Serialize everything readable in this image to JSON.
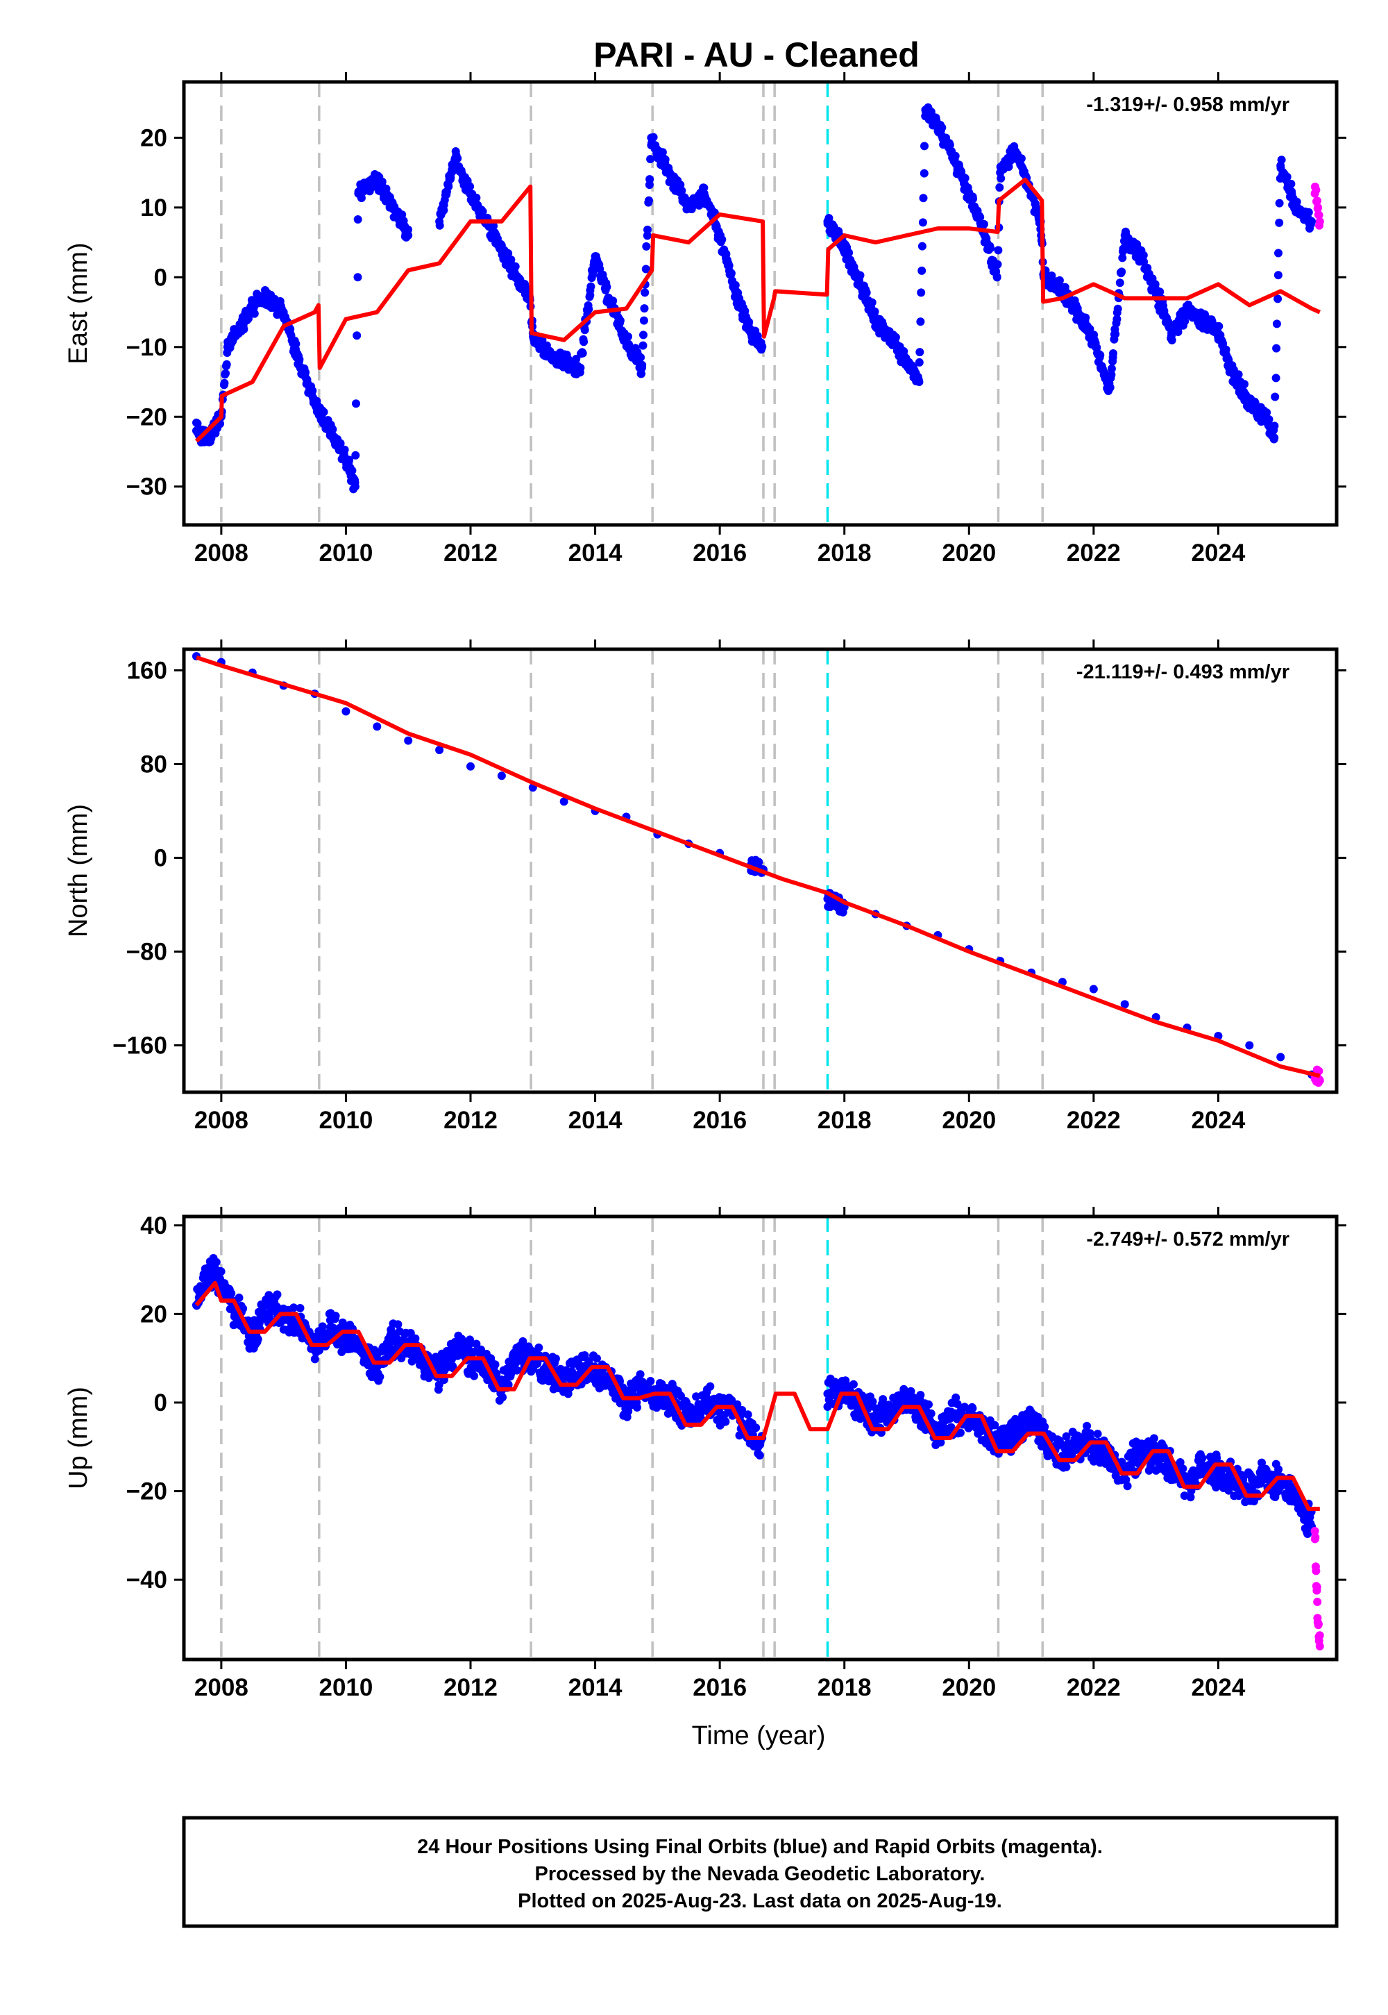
{
  "title": "PARI  - AU - Cleaned",
  "xlabel": "Time (year)",
  "caption": [
    "24 Hour Positions Using Final Orbits (blue) and Rapid Orbits (magenta).",
    "Processed by the Nevada Geodetic Laboratory.",
    "Plotted on 2025-Aug-23. Last data on 2025-Aug-19."
  ],
  "colors": {
    "final_orbits": "#0000ff",
    "rapid_orbits": "#ff00ff",
    "model": "#ff0000",
    "equipment_change_line": "#c0c0c0",
    "earthquake_line": "#00e5ee"
  },
  "chart_data": [
    {
      "type": "scatter",
      "ylabel": "East (mm)",
      "rate_text": "-1.319+/- 0.958 mm/yr",
      "xlim": [
        2007.4,
        2025.9
      ],
      "ylim": [
        -35.5,
        28
      ],
      "xticks": [
        "2008",
        "2010",
        "2012",
        "2014",
        "2016",
        "2018",
        "2020",
        "2022",
        "2024"
      ],
      "yticks": [
        -30,
        -20,
        -10,
        0,
        10,
        20
      ],
      "equipment_change_epochs": [
        2008.0,
        2009.57,
        2012.97,
        2014.92,
        2016.7,
        2016.88,
        2020.47,
        2021.18
      ],
      "earthquake_epochs": [
        2017.73
      ],
      "series": [
        {
          "role": "final_orbits",
          "x": [
            2007.6,
            2007.8,
            2008.0,
            2008.1,
            2008.25,
            2008.5,
            2008.75,
            2009.0,
            2009.25,
            2009.5,
            2009.75,
            2010.0,
            2010.15,
            2010.2,
            2010.5,
            2010.75,
            2011.0,
            2011.5,
            2011.75,
            2012.0,
            2012.25,
            2012.5,
            2012.75,
            2012.95,
            2013.0,
            2013.25,
            2013.5,
            2013.75,
            2014.0,
            2014.25,
            2014.5,
            2014.75,
            2014.9,
            2015.0,
            2015.25,
            2015.5,
            2015.75,
            2016.0,
            2016.25,
            2016.5,
            2016.68,
            2017.73,
            2018.0,
            2018.25,
            2018.5,
            2018.75,
            2019.0,
            2019.2,
            2019.3,
            2019.5,
            2019.75,
            2020.0,
            2020.25,
            2020.45,
            2020.5,
            2020.75,
            2021.0,
            2021.15,
            2021.2,
            2021.5,
            2021.75,
            2022.0,
            2022.25,
            2022.5,
            2022.75,
            2023.0,
            2023.25,
            2023.5,
            2023.75,
            2024.0,
            2024.25,
            2024.5,
            2024.75,
            2024.9,
            2025.0,
            2025.25,
            2025.5
          ],
          "y": [
            -22,
            -23,
            -20,
            -10,
            -8,
            -4,
            -3,
            -5,
            -12,
            -18,
            -22,
            -26,
            -30,
            12,
            14,
            10,
            6,
            8,
            17,
            12,
            8,
            4,
            0,
            -3,
            -8,
            -11,
            -12,
            -13,
            3,
            -4,
            -9,
            -13,
            20,
            18,
            14,
            10,
            12,
            6,
            -2,
            -8,
            -10,
            8,
            4,
            -1,
            -6,
            -9,
            -12,
            -15,
            24,
            22,
            17,
            12,
            6,
            0,
            15,
            18,
            12,
            8,
            0,
            -2,
            -5,
            -9,
            -16,
            6,
            3,
            -2,
            -8,
            -5,
            -6,
            -8,
            -14,
            -18,
            -20,
            -23,
            16,
            10,
            8
          ]
        },
        {
          "role": "rapid_orbits",
          "x": [
            2025.55,
            2025.6,
            2025.63
          ],
          "y": [
            12,
            10,
            8
          ]
        },
        {
          "role": "model",
          "x": [
            2007.6,
            2008.0,
            2008.01,
            2008.5,
            2009.0,
            2009.5,
            2009.56,
            2009.58,
            2010.0,
            2010.5,
            2011.0,
            2011.5,
            2012.0,
            2012.5,
            2012.96,
            2012.98,
            2013.5,
            2014.0,
            2014.5,
            2014.91,
            2014.93,
            2015.5,
            2016.0,
            2016.69,
            2016.71,
            2016.87,
            2016.89,
            2017.72,
            2017.74,
            2018.0,
            2018.5,
            2019.0,
            2019.5,
            2020.0,
            2020.46,
            2020.48,
            2020.9,
            2021.17,
            2021.19,
            2021.5,
            2022.0,
            2022.5,
            2023.0,
            2023.5,
            2024.0,
            2024.5,
            2025.0,
            2025.5,
            2025.63
          ],
          "y": [
            -23.5,
            -20,
            -17,
            -15,
            -7,
            -5,
            -4,
            -13,
            -6,
            -5,
            1,
            2,
            8,
            8,
            13,
            -8,
            -9,
            -5,
            -4.5,
            1,
            6,
            5,
            9,
            8,
            -8.5,
            -3,
            -2,
            -2.5,
            4,
            6,
            5,
            6,
            7,
            7,
            6.5,
            11,
            14,
            11,
            -3.5,
            -3,
            -1,
            -3,
            -3,
            -3,
            -1,
            -4,
            -2,
            -4.5,
            -5
          ]
        }
      ]
    },
    {
      "type": "scatter",
      "ylabel": "North (mm)",
      "rate_text": "-21.119+/- 0.493 mm/yr",
      "xlim": [
        2007.4,
        2025.9
      ],
      "ylim": [
        -200,
        178
      ],
      "xticks": [
        "2008",
        "2010",
        "2012",
        "2014",
        "2016",
        "2018",
        "2020",
        "2022",
        "2024"
      ],
      "yticks": [
        -160,
        -80,
        0,
        80,
        160
      ],
      "equipment_change_epochs": [
        2008.0,
        2009.57,
        2012.97,
        2014.92,
        2016.7,
        2016.88,
        2020.47,
        2021.18
      ],
      "earthquake_epochs": [
        2017.73
      ],
      "series": [
        {
          "role": "final_orbits",
          "x": [
            2007.6,
            2008.0,
            2008.5,
            2009.0,
            2009.5,
            2010.0,
            2010.5,
            2011.0,
            2011.5,
            2012.0,
            2012.5,
            2013.0,
            2013.5,
            2014.0,
            2014.5,
            2015.0,
            2015.5,
            2016.0,
            2016.5,
            2016.7,
            2017.73,
            2018.0,
            2018.5,
            2019.0,
            2019.5,
            2020.0,
            2020.5,
            2021.0,
            2021.5,
            2022.0,
            2022.5,
            2023.0,
            2023.5,
            2024.0,
            2024.5,
            2025.0,
            2025.5
          ],
          "y": [
            172,
            167,
            158,
            147,
            140,
            125,
            112,
            100,
            92,
            78,
            70,
            60,
            48,
            40,
            35,
            20,
            12,
            4,
            -6,
            -10,
            -35,
            -42,
            -48,
            -58,
            -66,
            -78,
            -88,
            -98,
            -106,
            -112,
            -125,
            -136,
            -145,
            -152,
            -160,
            -170,
            -185
          ]
        },
        {
          "role": "rapid_orbits",
          "x": [
            2025.55,
            2025.6,
            2025.63
          ],
          "y": [
            -186,
            -188,
            -190
          ]
        },
        {
          "role": "model",
          "x": [
            2007.6,
            2008.0,
            2009.0,
            2010.0,
            2011.0,
            2012.0,
            2013.0,
            2014.0,
            2015.0,
            2016.0,
            2017.0,
            2017.73,
            2018.0,
            2019.0,
            2020.0,
            2021.0,
            2022.0,
            2023.0,
            2024.0,
            2025.0,
            2025.63
          ],
          "y": [
            171,
            164,
            148,
            132,
            106,
            88,
            64,
            42,
            22,
            2,
            -18,
            -30,
            -38,
            -58,
            -80,
            -100,
            -120,
            -140,
            -156,
            -178,
            -186
          ]
        }
      ]
    },
    {
      "type": "scatter",
      "ylabel": "Up (mm)",
      "rate_text": "-2.749+/- 0.572 mm/yr",
      "xlim": [
        2007.4,
        2025.9
      ],
      "ylim": [
        -58,
        42
      ],
      "xticks": [
        "2008",
        "2010",
        "2012",
        "2014",
        "2016",
        "2018",
        "2020",
        "2022",
        "2024"
      ],
      "yticks": [
        -40,
        -20,
        0,
        20,
        40
      ],
      "equipment_change_epochs": [
        2008.0,
        2009.57,
        2012.97,
        2014.92,
        2016.7,
        2016.88,
        2020.47,
        2021.18
      ],
      "earthquake_epochs": [
        2017.73
      ],
      "series": [
        {
          "role": "final_orbits",
          "x": [
            2007.6,
            2007.8,
            2008.0,
            2008.25,
            2008.5,
            2008.75,
            2009.0,
            2009.25,
            2009.5,
            2009.75,
            2010.0,
            2010.25,
            2010.5,
            2010.75,
            2011.0,
            2011.25,
            2011.5,
            2011.75,
            2012.0,
            2012.25,
            2012.5,
            2012.75,
            2013.0,
            2013.25,
            2013.5,
            2013.75,
            2014.0,
            2014.25,
            2014.5,
            2014.75,
            2015.0,
            2015.25,
            2015.5,
            2015.75,
            2016.0,
            2016.25,
            2016.5,
            2016.68,
            2017.73,
            2018.0,
            2018.25,
            2018.5,
            2018.75,
            2019.0,
            2019.25,
            2019.5,
            2019.75,
            2020.0,
            2020.25,
            2020.5,
            2020.75,
            2021.0,
            2021.25,
            2021.5,
            2021.75,
            2022.0,
            2022.25,
            2022.5,
            2022.75,
            2023.0,
            2023.25,
            2023.5,
            2023.75,
            2024.0,
            2024.25,
            2024.5,
            2024.75,
            2025.0,
            2025.25,
            2025.5
          ],
          "y": [
            22,
            30,
            27,
            20,
            15,
            22,
            20,
            18,
            12,
            17,
            15,
            12,
            8,
            14,
            13,
            10,
            6,
            12,
            10,
            8,
            3,
            10,
            10,
            8,
            4,
            8,
            7,
            5,
            0,
            4,
            2,
            1,
            -4,
            0,
            -1,
            -2,
            -7,
            -8,
            2,
            3,
            0,
            -4,
            -1,
            0,
            -2,
            -7,
            -3,
            -4,
            -6,
            -10,
            -6,
            -5,
            -8,
            -12,
            -9,
            -10,
            -13,
            -16,
            -11,
            -12,
            -14,
            -18,
            -15,
            -15,
            -17,
            -20,
            -16,
            -18,
            -22,
            -28
          ]
        },
        {
          "role": "rapid_orbits",
          "x": [
            2025.55,
            2025.57,
            2025.59,
            2025.61,
            2025.63
          ],
          "y": [
            -29,
            -38,
            -45,
            -50,
            -55
          ]
        },
        {
          "role": "model",
          "x": [
            2007.6,
            2007.9,
            2008.0,
            2008.2,
            2008.45,
            2008.7,
            2008.95,
            2009.2,
            2009.45,
            2009.7,
            2009.95,
            2010.2,
            2010.45,
            2010.7,
            2010.95,
            2011.2,
            2011.45,
            2011.7,
            2011.95,
            2012.2,
            2012.45,
            2012.7,
            2012.95,
            2013.2,
            2013.45,
            2013.7,
            2013.95,
            2014.2,
            2014.45,
            2014.7,
            2014.95,
            2015.2,
            2015.45,
            2015.7,
            2015.95,
            2016.2,
            2016.45,
            2016.7,
            2016.9,
            2017.2,
            2017.45,
            2017.73,
            2017.95,
            2018.2,
            2018.45,
            2018.7,
            2018.95,
            2019.2,
            2019.45,
            2019.7,
            2019.95,
            2020.2,
            2020.45,
            2020.7,
            2020.95,
            2021.15,
            2021.2,
            2021.45,
            2021.7,
            2021.95,
            2022.2,
            2022.45,
            2022.7,
            2022.95,
            2023.2,
            2023.45,
            2023.7,
            2023.95,
            2024.2,
            2024.45,
            2024.7,
            2024.95,
            2025.2,
            2025.45,
            2025.63
          ],
          "y": [
            22,
            27,
            23,
            23,
            16,
            16,
            20,
            20,
            13,
            13,
            16,
            16,
            9,
            9,
            13,
            13,
            6,
            6,
            10,
            10,
            3,
            3,
            10,
            10,
            4,
            4,
            8,
            8,
            1,
            1,
            2,
            2,
            -5,
            -5,
            -1,
            -1,
            -8,
            -8,
            2,
            2,
            -6,
            -6,
            2,
            2,
            -6,
            -6,
            -1,
            -1,
            -8,
            -8,
            -3,
            -3,
            -11,
            -11,
            -7,
            -7,
            -7,
            -13,
            -13,
            -9,
            -9,
            -16,
            -16,
            -11,
            -11,
            -19,
            -19,
            -14,
            -14,
            -21,
            -21,
            -17,
            -17,
            -24,
            -24
          ]
        }
      ]
    }
  ]
}
